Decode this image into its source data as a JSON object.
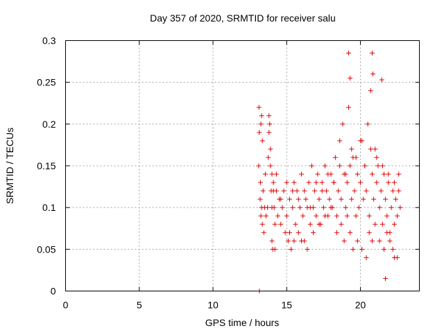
{
  "chart_data": {
    "type": "scatter",
    "title": "Day 357 of 2020, SRMTID for receiver salu",
    "xlabel": "GPS time / hours",
    "ylabel": "SRMTID / TECUs",
    "xlim": [
      0,
      24
    ],
    "ylim": [
      0,
      0.3
    ],
    "xticks": [
      0,
      5,
      10,
      15,
      20
    ],
    "xtick_labels": [
      "0",
      "5",
      "10",
      "15",
      "20"
    ],
    "yticks": [
      0,
      0.05,
      0.1,
      0.15,
      0.2,
      0.25,
      0.3
    ],
    "ytick_labels": [
      "0",
      "0.05",
      "0.1",
      "0.15",
      "0.2",
      "0.25",
      "0.3"
    ],
    "grid": true,
    "marker": "plus",
    "series": [
      {
        "name": "SRMTID",
        "color": "#dd0000",
        "x": [
          13.1,
          13.12,
          13.14,
          13.2,
          13.22,
          13.25,
          13.3,
          13.35,
          13.4,
          13.45,
          13.5,
          13.55,
          13.6,
          13.7,
          13.75,
          13.8,
          13.85,
          13.9,
          13.95,
          14.0,
          14.05,
          14.1,
          14.15,
          14.2,
          14.3,
          14.4,
          14.5,
          14.6,
          14.7,
          14.8,
          14.9,
          15.0,
          15.1,
          15.2,
          15.3,
          15.4,
          15.5,
          15.6,
          15.7,
          15.8,
          15.9,
          16.0,
          16.1,
          16.2,
          16.3,
          16.4,
          16.5,
          16.6,
          16.7,
          16.8,
          16.9,
          17.0,
          17.1,
          17.2,
          17.3,
          17.4,
          17.5,
          17.6,
          17.7,
          17.8,
          17.9,
          18.0,
          18.1,
          18.2,
          18.3,
          18.4,
          18.5,
          18.6,
          18.7,
          18.8,
          18.9,
          19.0,
          19.1,
          19.2,
          19.3,
          19.4,
          19.5,
          19.6,
          19.7,
          19.8,
          19.9,
          20.0,
          20.1,
          20.2,
          20.3,
          20.4,
          20.5,
          20.6,
          20.7,
          20.8,
          20.9,
          21.0,
          21.1,
          21.2,
          21.3,
          21.4,
          21.5,
          21.6,
          21.7,
          21.8,
          21.9,
          22.0,
          22.1,
          22.2,
          22.3,
          22.4,
          22.5,
          22.6,
          22.7,
          13.25,
          13.3,
          13.35,
          13.8,
          13.9,
          14.0,
          14.1,
          14.2,
          15.2,
          15.5,
          16.0,
          16.4,
          16.8,
          17.2,
          17.6,
          18.0,
          18.4,
          18.7,
          18.9,
          19.1,
          19.3,
          19.5,
          19.8,
          20.1,
          20.4,
          20.6,
          20.8,
          21.0,
          21.3,
          21.6,
          21.8,
          22.0,
          22.2,
          22.5,
          14.0,
          14.3,
          14.6,
          15.0,
          15.4,
          15.8,
          16.2,
          16.6,
          17.0,
          17.4,
          17.8,
          18.2,
          18.6,
          19.0,
          19.4,
          19.7,
          20.0,
          20.3,
          20.7,
          21.1,
          21.5,
          21.9,
          22.3,
          22.6,
          19.2,
          19.3,
          20.8,
          20.85,
          21.7,
          22.3,
          21.45,
          13.15
        ],
        "y": [
          0.15,
          0.22,
          0.19,
          0.11,
          0.13,
          0.09,
          0.1,
          0.08,
          0.12,
          0.07,
          0.1,
          0.14,
          0.09,
          0.1,
          0.16,
          0.21,
          0.2,
          0.15,
          0.12,
          0.06,
          0.05,
          0.13,
          0.1,
          0.08,
          0.14,
          0.09,
          0.11,
          0.08,
          0.1,
          0.12,
          0.07,
          0.09,
          0.06,
          0.11,
          0.05,
          0.1,
          0.13,
          0.08,
          0.12,
          0.07,
          0.1,
          0.14,
          0.09,
          0.06,
          0.11,
          0.1,
          0.13,
          0.08,
          0.15,
          0.1,
          0.12,
          0.09,
          0.14,
          0.11,
          0.08,
          0.13,
          0.1,
          0.15,
          0.12,
          0.09,
          0.11,
          0.14,
          0.1,
          0.13,
          0.16,
          0.09,
          0.12,
          0.18,
          0.11,
          0.2,
          0.14,
          0.1,
          0.13,
          0.22,
          0.15,
          0.11,
          0.16,
          0.12,
          0.09,
          0.14,
          0.1,
          0.13,
          0.18,
          0.11,
          0.15,
          0.12,
          0.2,
          0.09,
          0.24,
          0.14,
          0.11,
          0.17,
          0.13,
          0.15,
          0.1,
          0.12,
          0.08,
          0.14,
          0.11,
          0.09,
          0.13,
          0.07,
          0.1,
          0.12,
          0.08,
          0.11,
          0.09,
          0.14,
          0.1,
          0.2,
          0.21,
          0.18,
          0.19,
          0.17,
          0.14,
          0.12,
          0.05,
          0.07,
          0.06,
          0.06,
          0.05,
          0.07,
          0.08,
          0.09,
          0.1,
          0.07,
          0.08,
          0.06,
          0.09,
          0.07,
          0.05,
          0.06,
          0.05,
          0.04,
          0.07,
          0.06,
          0.08,
          0.06,
          0.05,
          0.07,
          0.06,
          0.05,
          0.04,
          0.1,
          0.12,
          0.11,
          0.13,
          0.12,
          0.11,
          0.12,
          0.1,
          0.13,
          0.12,
          0.14,
          0.13,
          0.15,
          0.14,
          0.17,
          0.16,
          0.18,
          0.15,
          0.17,
          0.16,
          0.15,
          0.14,
          0.13,
          0.12,
          0.285,
          0.255,
          0.285,
          0.26,
          0.015,
          0.04,
          0.253,
          0.0
        ]
      }
    ]
  }
}
